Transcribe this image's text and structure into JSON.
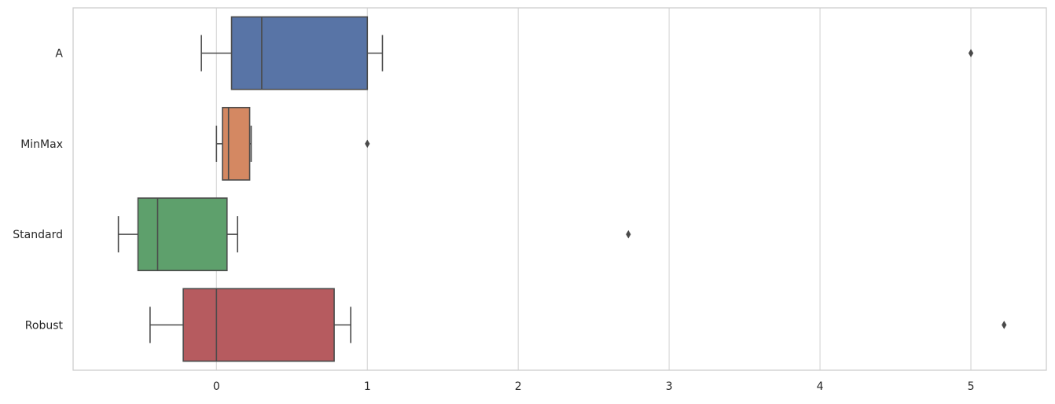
{
  "chart_data": {
    "type": "boxplot",
    "orientation": "horizontal",
    "title": "",
    "xlabel": "",
    "ylabel": "",
    "xlim": [
      -0.95,
      5.5
    ],
    "x_ticks": [
      0,
      1,
      2,
      3,
      4,
      5
    ],
    "x_tick_labels": [
      "0",
      "1",
      "2",
      "3",
      "4",
      "5"
    ],
    "grid": "x-axis",
    "categories": [
      "A",
      "MinMax",
      "Standard",
      "Robust"
    ],
    "series": [
      {
        "name": "A",
        "color": "#5874a6",
        "whisker_low": -0.1,
        "q1": 0.1,
        "median": 0.3,
        "q3": 1.0,
        "whisker_high": 1.1,
        "outliers": [
          5.0
        ]
      },
      {
        "name": "MinMax",
        "color": "#d48862",
        "whisker_low": 0.0,
        "q1": 0.04,
        "median": 0.08,
        "q3": 0.22,
        "whisker_high": 0.23,
        "outliers": [
          1.0
        ]
      },
      {
        "name": "Standard",
        "color": "#5ea06c",
        "whisker_low": -0.65,
        "q1": -0.52,
        "median": -0.39,
        "q3": 0.07,
        "whisker_high": 0.14,
        "outliers": [
          2.73
        ]
      },
      {
        "name": "Robust",
        "color": "#b65b5f",
        "whisker_low": -0.44,
        "q1": -0.22,
        "median": 0.0,
        "q3": 0.78,
        "whisker_high": 0.89,
        "outliers": [
          5.22
        ]
      }
    ]
  }
}
